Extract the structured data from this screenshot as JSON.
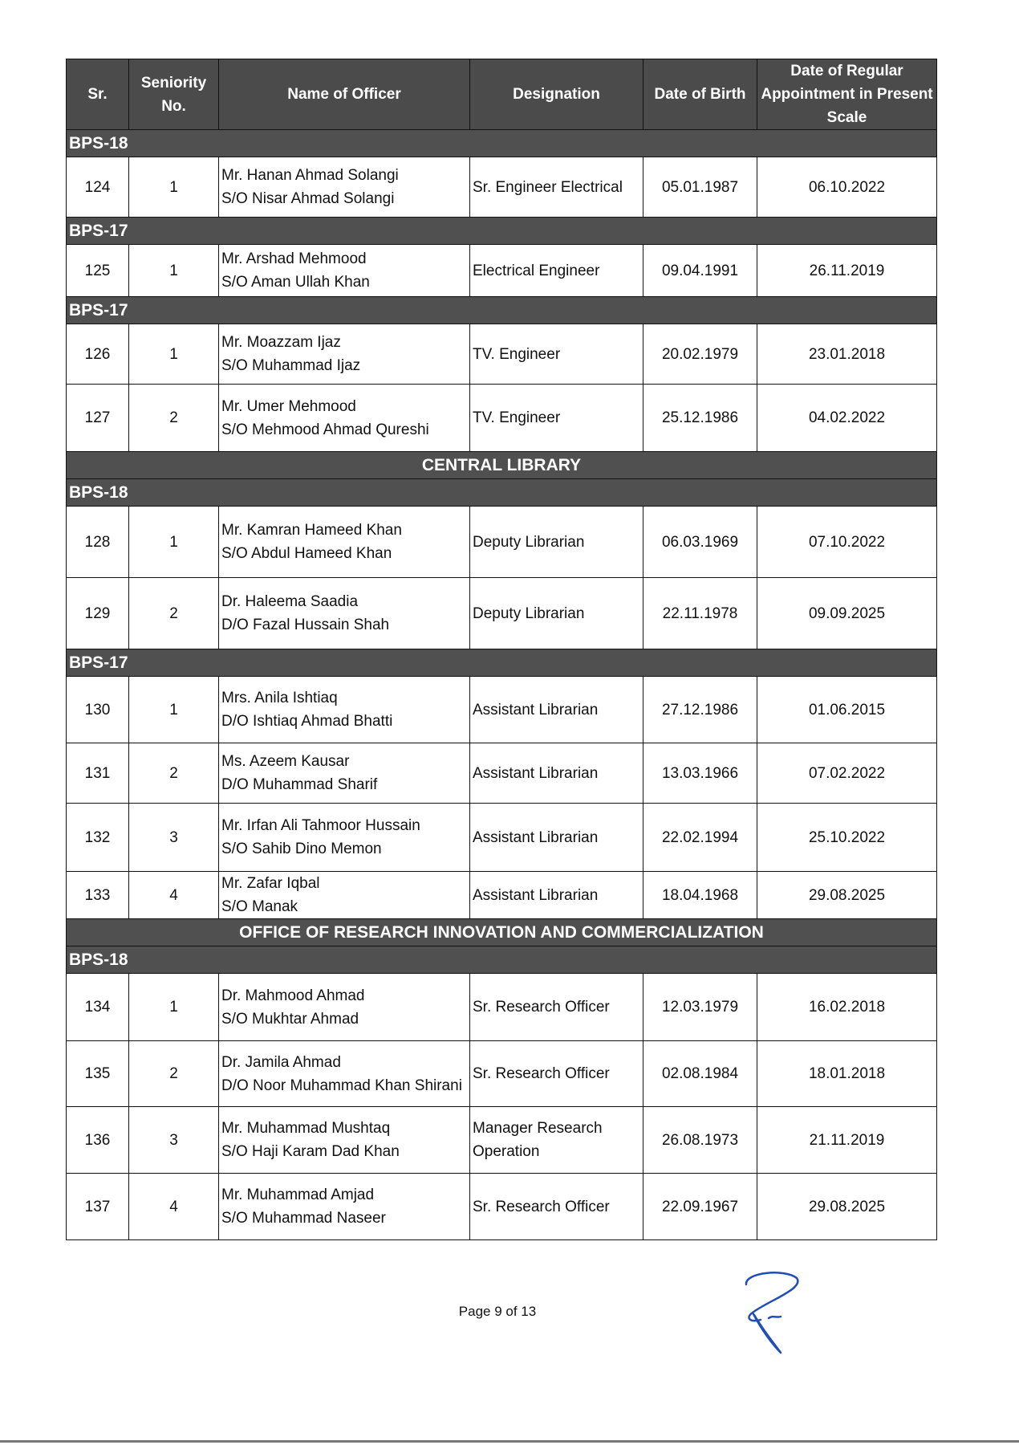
{
  "headers": [
    "Sr.",
    "Seniority No.",
    "Name of Officer",
    "Designation",
    "Date of Birth",
    "Date of Regular Appointment in Present Scale"
  ],
  "rows": [
    {
      "type": "grade",
      "label": "BPS-18"
    },
    {
      "type": "row",
      "sr": "124",
      "seniority": "1",
      "name": "Mr. Hanan Ahmad Solangi",
      "parent": "S/O Nisar Ahmad Solangi",
      "designation": "Sr. Engineer Electrical",
      "dob": "05.01.1987",
      "appointment": "06.10.2022",
      "h": 76
    },
    {
      "type": "grade",
      "label": "BPS-17"
    },
    {
      "type": "row",
      "sr": "125",
      "seniority": "1",
      "name": "Mr. Arshad Mehmood",
      "parent": "S/O Aman Ullah Khan",
      "designation": "Electrical Engineer",
      "dob": "09.04.1991",
      "appointment": "26.11.2019",
      "h": 66
    },
    {
      "type": "grade",
      "label": "BPS-17"
    },
    {
      "type": "row",
      "sr": "126",
      "seniority": "1",
      "name": "Mr. Moazzam Ijaz",
      "parent": "S/O Muhammad Ijaz",
      "designation": "TV. Engineer",
      "dob": "20.02.1979",
      "appointment": "23.01.2018",
      "h": 76
    },
    {
      "type": "row",
      "sr": "127",
      "seniority": "2",
      "name": "Mr. Umer Mehmood",
      "parent": "S/O Mehmood Ahmad Qureshi",
      "designation": "TV. Engineer",
      "dob": "25.12.1986",
      "appointment": "04.02.2022",
      "h": 85
    },
    {
      "type": "section",
      "label": "CENTRAL LIBRARY"
    },
    {
      "type": "grade",
      "label": "BPS-18"
    },
    {
      "type": "row",
      "sr": "128",
      "seniority": "1",
      "name": "Mr. Kamran Hameed Khan",
      "parent": "S/O Abdul Hameed Khan",
      "designation": "Deputy Librarian",
      "dob": "06.03.1969",
      "appointment": "07.10.2022",
      "h": 90
    },
    {
      "type": "row",
      "sr": "129",
      "seniority": "2",
      "name": "Dr. Haleema Saadia",
      "parent": "D/O Fazal Hussain Shah",
      "designation": "Deputy Librarian",
      "dob": "22.11.1978",
      "appointment": "09.09.2025",
      "h": 90
    },
    {
      "type": "grade",
      "label": "BPS-17"
    },
    {
      "type": "row",
      "sr": "130",
      "seniority": "1",
      "name": "Mrs. Anila Ishtiaq",
      "parent": "D/O Ishtiaq Ahmad Bhatti",
      "designation": "Assistant Librarian",
      "dob": "27.12.1986",
      "appointment": "01.06.2015",
      "h": 84
    },
    {
      "type": "row",
      "sr": "131",
      "seniority": "2",
      "name": "Ms. Azeem Kausar",
      "parent": "D/O Muhammad Sharif",
      "designation": "Assistant Librarian",
      "dob": "13.03.1966",
      "appointment": "07.02.2022",
      "h": 76
    },
    {
      "type": "row",
      "sr": "132",
      "seniority": "3",
      "name": "Mr. Irfan Ali Tahmoor Hussain",
      "parent": "S/O Sahib Dino Memon",
      "designation": "Assistant Librarian",
      "dob": "22.02.1994",
      "appointment": "25.10.2022",
      "h": 86
    },
    {
      "type": "row",
      "sr": "133",
      "seniority": "4",
      "name": "Mr. Zafar Iqbal",
      "parent": "S/O Manak",
      "designation": "Assistant Librarian",
      "dob": "18.04.1968",
      "appointment": "29.08.2025",
      "h": 59
    },
    {
      "type": "section",
      "label": "OFFICE OF RESEARCH INNOVATION AND COMMERCIALIZATION"
    },
    {
      "type": "grade",
      "label": "BPS-18"
    },
    {
      "type": "row",
      "sr": "134",
      "seniority": "1",
      "name": "Dr. Mahmood Ahmad",
      "parent": "S/O Mukhtar Ahmad",
      "designation": "Sr. Research Officer",
      "dob": "12.03.1979",
      "appointment": "16.02.2018",
      "h": 85
    },
    {
      "type": "row",
      "sr": "135",
      "seniority": "2",
      "name": "Dr. Jamila Ahmad",
      "parent": "D/O Noor Muhammad Khan Shirani",
      "designation": "Sr. Research Officer",
      "dob": "02.08.1984",
      "appointment": "18.01.2018",
      "h": 83
    },
    {
      "type": "row",
      "sr": "136",
      "seniority": "3",
      "name": "Mr. Muhammad Mushtaq",
      "parent": "S/O Haji Karam Dad Khan",
      "designation": "Manager Research Operation",
      "dob": "26.08.1973",
      "appointment": "21.11.2019",
      "h": 84
    },
    {
      "type": "row",
      "sr": "137",
      "seniority": "4",
      "name": "Mr. Muhammad Amjad",
      "parent": "S/O Muhammad Naseer",
      "designation": "Sr. Research Officer",
      "dob": "22.09.1967",
      "appointment": "29.08.2025",
      "h": 84
    }
  ],
  "footer": {
    "page_label": "Page 9 of 13"
  },
  "signature": {
    "color": "#1f4fb5"
  }
}
